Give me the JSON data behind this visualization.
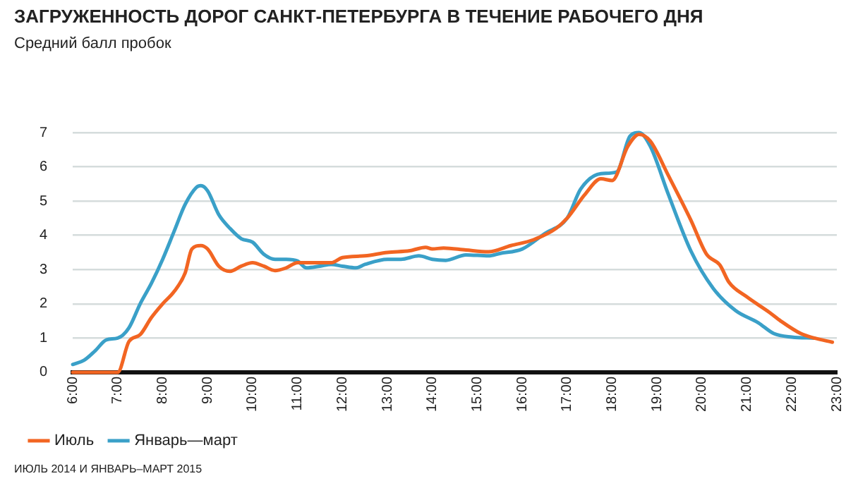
{
  "chart_data": {
    "type": "line",
    "title": "ЗАГРУЖЕННОСТЬ ДОРОГ САНКТ-ПЕТЕРБУРГА В ТЕЧЕНИЕ РАБОЧЕГО ДНЯ",
    "ylabel": "Средний балл пробок",
    "annotations": [
      "ИЮЛЬ 2014 И ЯНВАРЬ–МАРТ 2015"
    ],
    "xlim": [
      6,
      23
    ],
    "xticks": [
      {
        "value": 6,
        "label": "6:00"
      },
      {
        "value": 7,
        "label": "7:00"
      },
      {
        "value": 8,
        "label": "8:00"
      },
      {
        "value": 9,
        "label": "9:00"
      },
      {
        "value": 10,
        "label": "10:00"
      },
      {
        "value": 11,
        "label": "11:00"
      },
      {
        "value": 12,
        "label": "12:00"
      },
      {
        "value": 13,
        "label": "13:00"
      },
      {
        "value": 14,
        "label": "14:00"
      },
      {
        "value": 15,
        "label": "15:00"
      },
      {
        "value": 16,
        "label": "16:00"
      },
      {
        "value": 17,
        "label": "17:00"
      },
      {
        "value": 18,
        "label": "18:00"
      },
      {
        "value": 19,
        "label": "19:00"
      },
      {
        "value": 20,
        "label": "20:00"
      },
      {
        "value": 21,
        "label": "21:00"
      },
      {
        "value": 22,
        "label": "22:00"
      },
      {
        "value": 23,
        "label": "23:00"
      }
    ],
    "ylim": [
      0,
      7
    ],
    "yticks": [
      0,
      1,
      2,
      3,
      4,
      5,
      6,
      7
    ],
    "grid": "y",
    "legend": "bottom",
    "marker": "none",
    "line_style": "solid",
    "series": [
      {
        "name": "Июль",
        "color": "#f26522",
        "x": [
          6,
          6.5,
          7,
          7.25,
          7.5,
          7.75,
          8,
          8.25,
          8.5,
          8.65,
          8.85,
          9,
          9.25,
          9.5,
          9.75,
          10,
          10.25,
          10.5,
          10.75,
          11,
          11.5,
          11.75,
          12,
          12.5,
          13,
          13.5,
          13.85,
          14,
          14.25,
          14.75,
          15.25,
          15.75,
          16.25,
          16.75,
          17,
          17.4,
          17.75,
          18,
          18.35,
          18.6,
          18.85,
          19.25,
          19.75,
          20.1,
          20.4,
          20.6,
          21,
          21.5,
          21.75,
          22.2,
          22.5,
          22.9
        ],
        "values": [
          0,
          0,
          0,
          0.9,
          1.1,
          1.6,
          2,
          2.35,
          2.9,
          3.6,
          3.7,
          3.6,
          3.1,
          2.95,
          3.1,
          3.2,
          3.1,
          2.97,
          3.05,
          3.2,
          3.2,
          3.2,
          3.35,
          3.4,
          3.5,
          3.55,
          3.65,
          3.6,
          3.63,
          3.57,
          3.52,
          3.7,
          3.87,
          4.2,
          4.5,
          5.2,
          5.65,
          5.6,
          6.6,
          6.95,
          6.75,
          5.75,
          4.45,
          3.45,
          3.13,
          2.63,
          2.2,
          1.75,
          1.5,
          1.13,
          1,
          0.88
        ]
      },
      {
        "name": "Январь—март",
        "color": "#3aa0c8",
        "x": [
          6,
          6.25,
          6.5,
          6.75,
          7,
          7.25,
          7.5,
          7.75,
          8,
          8.25,
          8.5,
          8.75,
          8.85,
          9,
          9.25,
          9.5,
          9.75,
          10,
          10.25,
          10.5,
          10.75,
          11,
          11.2,
          11.5,
          11.75,
          12,
          12.3,
          12.5,
          13,
          13.3,
          13.7,
          14,
          14.3,
          14.75,
          15.25,
          15.5,
          16,
          16.5,
          17,
          17.3,
          17.75,
          18.1,
          18.4,
          18.6,
          18.85,
          19.25,
          19.75,
          20.25,
          20.75,
          21.25,
          21.6,
          22,
          22.5
        ],
        "values": [
          0.23,
          0.35,
          0.63,
          0.95,
          1,
          1.3,
          2,
          2.6,
          3.3,
          4.1,
          4.9,
          5.4,
          5.45,
          5.3,
          4.6,
          4.2,
          3.9,
          3.8,
          3.45,
          3.3,
          3.3,
          3.25,
          3.05,
          3.1,
          3.15,
          3.1,
          3.05,
          3.15,
          3.3,
          3.3,
          3.4,
          3.3,
          3.27,
          3.43,
          3.4,
          3.47,
          3.6,
          4.05,
          4.5,
          5.35,
          5.8,
          5.85,
          6.9,
          7,
          6.6,
          5.2,
          3.55,
          2.45,
          1.8,
          1.45,
          1.13,
          1.03,
          1
        ]
      }
    ]
  }
}
